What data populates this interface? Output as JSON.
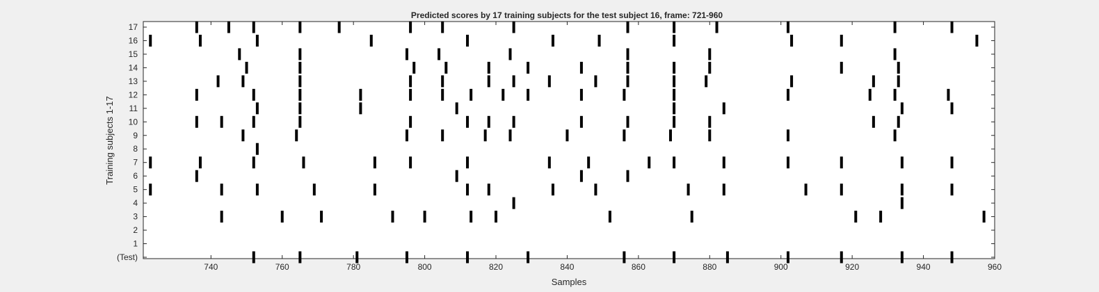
{
  "chart_data": {
    "type": "raster",
    "title": "Predicted scores by 17 training subjects for the test subject 16, frame: 721-960",
    "xlabel": "Samples",
    "ylabel": "Training subjects 1-17",
    "xlim": [
      721,
      960
    ],
    "x_ticks": [
      740,
      760,
      780,
      800,
      820,
      840,
      860,
      880,
      900,
      920,
      940,
      960
    ],
    "y_tick_labels": [
      "(Test)",
      "1",
      "2",
      "3",
      "4",
      "5",
      "6",
      "7",
      "8",
      "9",
      "10",
      "11",
      "12",
      "13",
      "14",
      "15",
      "16",
      "17"
    ],
    "grid": false,
    "rows": [
      {
        "label": "(Test)",
        "events": [
          752,
          765,
          781,
          795,
          812,
          829,
          856,
          870,
          885,
          902,
          917,
          934,
          948
        ]
      },
      {
        "label": "1",
        "events": []
      },
      {
        "label": "2",
        "events": []
      },
      {
        "label": "3",
        "events": [
          743,
          760,
          771,
          791,
          800,
          813,
          820,
          852,
          875,
          921,
          928,
          957
        ]
      },
      {
        "label": "4",
        "events": [
          825,
          934
        ]
      },
      {
        "label": "5",
        "events": [
          723,
          743,
          753,
          769,
          786,
          812,
          818,
          836,
          848,
          874,
          884,
          907,
          917,
          934,
          948
        ]
      },
      {
        "label": "6",
        "events": [
          736,
          809,
          844,
          857
        ]
      },
      {
        "label": "7",
        "events": [
          723,
          737,
          752,
          766,
          786,
          796,
          812,
          835,
          846,
          863,
          870,
          884,
          902,
          917,
          934,
          948
        ]
      },
      {
        "label": "8",
        "events": [
          753
        ]
      },
      {
        "label": "9",
        "events": [
          749,
          764,
          795,
          805,
          817,
          824,
          840,
          856,
          869,
          880,
          902,
          932
        ]
      },
      {
        "label": "10",
        "events": [
          736,
          743,
          752,
          765,
          796,
          812,
          818,
          825,
          844,
          857,
          870,
          880,
          926,
          933
        ]
      },
      {
        "label": "11",
        "events": [
          753,
          765,
          782,
          809,
          870,
          884,
          934,
          948
        ]
      },
      {
        "label": "12",
        "events": [
          736,
          752,
          765,
          782,
          796,
          805,
          813,
          822,
          829,
          844,
          856,
          870,
          902,
          925,
          932,
          947
        ]
      },
      {
        "label": "13",
        "events": [
          742,
          749,
          765,
          796,
          805,
          818,
          825,
          835,
          848,
          857,
          870,
          879,
          903,
          926,
          933
        ]
      },
      {
        "label": "14",
        "events": [
          750,
          765,
          797,
          806,
          818,
          829,
          844,
          857,
          870,
          880,
          917,
          933
        ]
      },
      {
        "label": "15",
        "events": [
          748,
          765,
          795,
          804,
          824,
          857,
          880,
          932
        ]
      },
      {
        "label": "16",
        "events": [
          723,
          737,
          753,
          785,
          812,
          836,
          849,
          870,
          903,
          917,
          955
        ]
      },
      {
        "label": "17",
        "events": [
          736,
          745,
          752,
          765,
          776,
          796,
          805,
          825,
          857,
          870,
          882,
          902,
          932,
          948
        ]
      }
    ]
  }
}
